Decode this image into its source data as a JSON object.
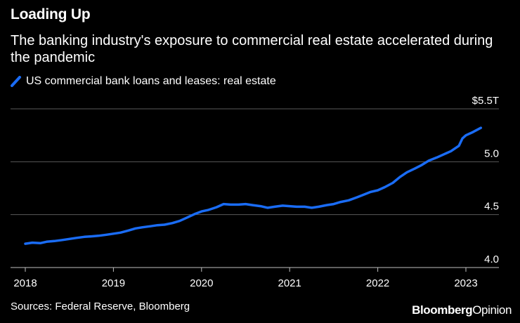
{
  "brand": {
    "name": "Bloomberg",
    "suffix": "Opinion"
  },
  "source": "Sources: Federal Reserve, Bloomberg",
  "colors": {
    "background": "#000000",
    "series": "#1a6cf5",
    "grid": "#5a5a5a",
    "text": "#ffffff"
  },
  "chart_data": {
    "type": "line",
    "title": "Loading Up",
    "subtitle": "The banking industry's exposure to commercial real estate accelerated during the pandemic",
    "xlabel": "",
    "ylabel": "",
    "x_ticks": [
      "2018",
      "2019",
      "2020",
      "2021",
      "2022",
      "2023"
    ],
    "y_ticks": [
      "$5.5T",
      "5.0",
      "4.5",
      "4.0"
    ],
    "ylim": [
      4.0,
      5.5
    ],
    "xlim": [
      2018.0,
      2023.4
    ],
    "grid": true,
    "legend_position": "top-left",
    "series": [
      {
        "name": "US commercial bank loans and leases: real estate",
        "x": [
          2018.0,
          2018.08,
          2018.17,
          2018.25,
          2018.33,
          2018.42,
          2018.5,
          2018.58,
          2018.67,
          2018.75,
          2018.83,
          2018.92,
          2019.0,
          2019.08,
          2019.17,
          2019.25,
          2019.33,
          2019.42,
          2019.5,
          2019.58,
          2019.67,
          2019.75,
          2019.83,
          2019.92,
          2020.0,
          2020.08,
          2020.17,
          2020.25,
          2020.33,
          2020.42,
          2020.5,
          2020.58,
          2020.67,
          2020.75,
          2020.83,
          2020.92,
          2021.0,
          2021.08,
          2021.17,
          2021.25,
          2021.33,
          2021.42,
          2021.5,
          2021.58,
          2021.67,
          2021.75,
          2021.83,
          2021.92,
          2022.0,
          2022.08,
          2022.17,
          2022.25,
          2022.33,
          2022.42,
          2022.5,
          2022.58,
          2022.67,
          2022.75,
          2022.83,
          2022.92,
          2022.96,
          2023.0,
          2023.08,
          2023.17
        ],
        "values": [
          4.225,
          4.235,
          4.23,
          4.245,
          4.25,
          4.26,
          4.27,
          4.28,
          4.29,
          4.295,
          4.3,
          4.31,
          4.32,
          4.33,
          4.35,
          4.37,
          4.38,
          4.39,
          4.4,
          4.405,
          4.42,
          4.44,
          4.47,
          4.505,
          4.53,
          4.545,
          4.57,
          4.6,
          4.595,
          4.595,
          4.6,
          4.59,
          4.58,
          4.565,
          4.575,
          4.585,
          4.58,
          4.575,
          4.575,
          4.565,
          4.575,
          4.59,
          4.6,
          4.62,
          4.635,
          4.66,
          4.685,
          4.715,
          4.73,
          4.76,
          4.8,
          4.855,
          4.9,
          4.935,
          4.97,
          5.01,
          5.04,
          5.07,
          5.1,
          5.15,
          5.22,
          5.25,
          5.28,
          5.32
        ]
      }
    ]
  }
}
